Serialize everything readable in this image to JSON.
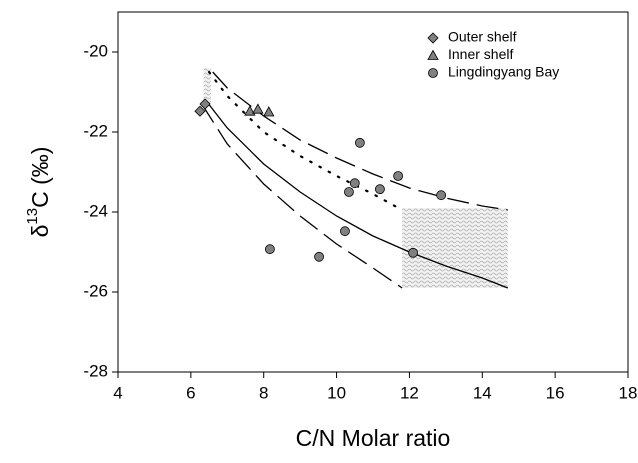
{
  "chart_data": {
    "type": "scatter",
    "x_label": "C/N Molar ratio",
    "y_label": {
      "prefix": "δ",
      "sup": "13",
      "suffix": "C (‰)"
    },
    "xlim": [
      4,
      18
    ],
    "xticks": [
      4,
      6,
      8,
      10,
      12,
      14,
      16,
      18
    ],
    "ylim": [
      -28,
      -19
    ],
    "yticks": [
      -28,
      -26,
      -24,
      -22,
      -20
    ],
    "legend": "top-right",
    "series": [
      {
        "name": "Outer shelf",
        "marker": "diamond",
        "color": "#808080",
        "x": [
          6.25,
          6.39
        ],
        "values": [
          -21.48,
          -21.3
        ]
      },
      {
        "name": "Inner shelf",
        "marker": "triangle",
        "color": "#808080",
        "x": [
          7.62,
          7.84,
          8.14
        ],
        "values": [
          -21.48,
          -21.43,
          -21.5
        ]
      },
      {
        "name": "Lingdingyang Bay",
        "marker": "circle",
        "color": "#808080",
        "x": [
          10.64,
          10.5,
          10.34,
          11.69,
          11.19,
          12.87,
          10.23,
          9.52,
          8.17,
          12.1
        ],
        "values": [
          -22.27,
          -23.28,
          -23.5,
          -23.1,
          -23.43,
          -23.58,
          -24.48,
          -25.12,
          -24.93,
          -25.02
        ]
      }
    ],
    "curves": [
      {
        "dash": "solid",
        "x": [
          6.4,
          7,
          8,
          9,
          10,
          11,
          12,
          13,
          14,
          14.7
        ],
        "values": [
          -21.2,
          -21.9,
          -22.8,
          -23.5,
          -24.1,
          -24.6,
          -25.0,
          -25.35,
          -25.65,
          -25.9
        ]
      },
      {
        "dash": "long",
        "x": [
          6.6,
          7,
          8,
          9,
          10,
          11,
          12,
          13,
          14,
          14.7
        ],
        "values": [
          -20.5,
          -20.9,
          -21.6,
          -22.2,
          -22.65,
          -23.05,
          -23.4,
          -23.65,
          -23.85,
          -23.95
        ]
      },
      {
        "dash": "long",
        "x": [
          6.3,
          7,
          8,
          9,
          10,
          11,
          11.8
        ],
        "values": [
          -21.3,
          -22.3,
          -23.3,
          -24.1,
          -24.8,
          -25.4,
          -25.9
        ]
      },
      {
        "dash": "dot",
        "x": [
          6.5,
          7,
          8,
          9,
          10,
          11,
          11.7
        ],
        "values": [
          -20.5,
          -21.1,
          -22.0,
          -22.6,
          -23.1,
          -23.55,
          -23.9
        ]
      }
    ],
    "regions": [
      {
        "xlim": [
          6.35,
          6.55
        ],
        "ylim": [
          -21.3,
          -20.4
        ]
      },
      {
        "xlim": [
          11.8,
          14.7
        ],
        "ylim": [
          -25.9,
          -23.9
        ]
      }
    ]
  }
}
